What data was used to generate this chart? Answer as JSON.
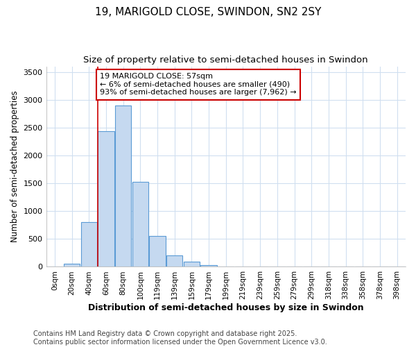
{
  "title_line1": "19, MARIGOLD CLOSE, SWINDON, SN2 2SY",
  "title_line2": "Size of property relative to semi-detached houses in Swindon",
  "xlabel": "Distribution of semi-detached houses by size in Swindon",
  "ylabel": "Number of semi-detached properties",
  "categories": [
    "0sqm",
    "20sqm",
    "40sqm",
    "60sqm",
    "80sqm",
    "100sqm",
    "119sqm",
    "139sqm",
    "159sqm",
    "179sqm",
    "199sqm",
    "219sqm",
    "239sqm",
    "259sqm",
    "279sqm",
    "299sqm",
    "318sqm",
    "338sqm",
    "358sqm",
    "378sqm",
    "398sqm"
  ],
  "values": [
    10,
    55,
    800,
    2430,
    2900,
    1520,
    560,
    200,
    90,
    30,
    10,
    5,
    2,
    2,
    1,
    1,
    1,
    0,
    0,
    0,
    0
  ],
  "bar_color": "#c5d9f0",
  "bar_edge_color": "#5b9bd5",
  "property_line_bar_index": 3,
  "annotation_text_line1": "19 MARIGOLD CLOSE: 57sqm",
  "annotation_text_line2": "← 6% of semi-detached houses are smaller (490)",
  "annotation_text_line3": "93% of semi-detached houses are larger (7,962) →",
  "annotation_box_color": "#ffffff",
  "annotation_box_edge_color": "#cc0000",
  "vline_color": "#cc0000",
  "ylim": [
    0,
    3600
  ],
  "background_color": "#ffffff",
  "plot_bg_color": "#ffffff",
  "grid_color": "#d0dff0",
  "footer_text": "Contains HM Land Registry data © Crown copyright and database right 2025.\nContains public sector information licensed under the Open Government Licence v3.0.",
  "title_fontsize": 11,
  "subtitle_fontsize": 9.5,
  "tick_fontsize": 7.5,
  "ylabel_fontsize": 8.5,
  "xlabel_fontsize": 9,
  "footer_fontsize": 7,
  "annotation_fontsize": 8
}
